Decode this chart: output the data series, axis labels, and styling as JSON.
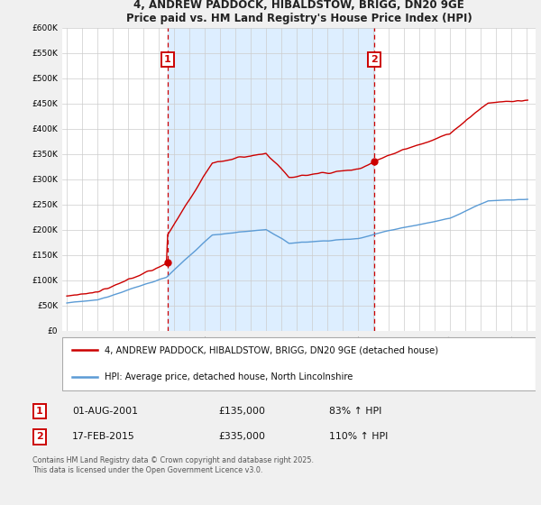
{
  "title_line1": "4, ANDREW PADDOCK, HIBALDSTOW, BRIGG, DN20 9GE",
  "title_line2": "Price paid vs. HM Land Registry's House Price Index (HPI)",
  "legend_label1": "4, ANDREW PADDOCK, HIBALDSTOW, BRIGG, DN20 9GE (detached house)",
  "legend_label2": "HPI: Average price, detached house, North Lincolnshire",
  "annotation1_date": "01-AUG-2001",
  "annotation1_price": "£135,000",
  "annotation1_hpi": "83% ↑ HPI",
  "annotation2_date": "17-FEB-2015",
  "annotation2_price": "£335,000",
  "annotation2_hpi": "110% ↑ HPI",
  "footnote": "Contains HM Land Registry data © Crown copyright and database right 2025.\nThis data is licensed under the Open Government Licence v3.0.",
  "property_color": "#cc0000",
  "hpi_color": "#5b9bd5",
  "shade_color": "#ddeeff",
  "dashed_line_color": "#cc0000",
  "ylim": [
    0,
    600000
  ],
  "yticks": [
    0,
    50000,
    100000,
    150000,
    200000,
    250000,
    300000,
    350000,
    400000,
    450000,
    500000,
    550000,
    600000
  ],
  "background_color": "#f0f0f0",
  "plot_bg_color": "#ffffff",
  "v1_year": 2001.583,
  "v2_year": 2015.083,
  "price1": 135000,
  "price2": 335000
}
